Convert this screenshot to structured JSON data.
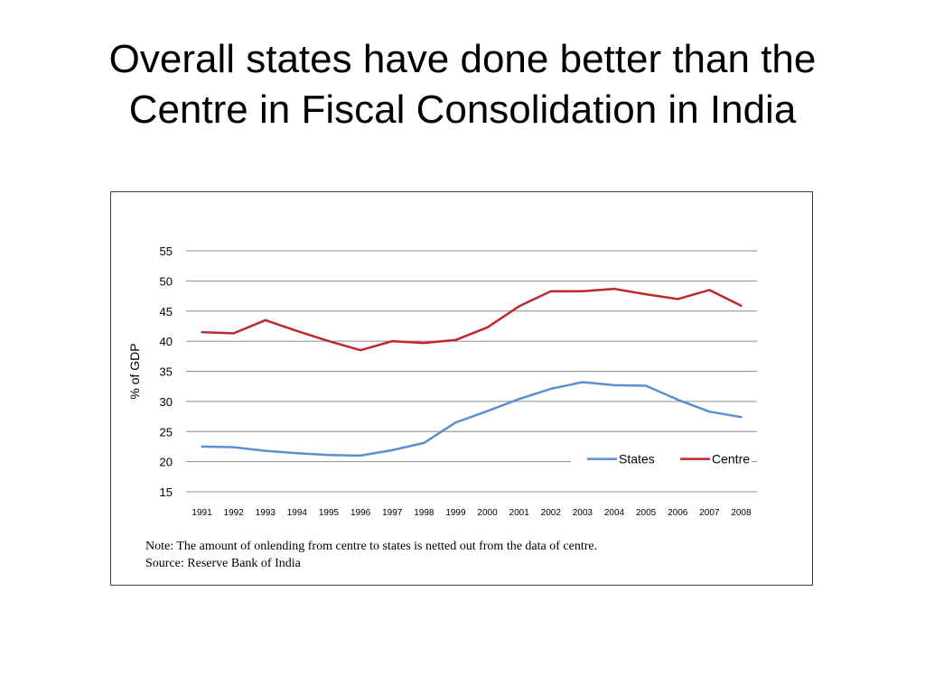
{
  "slide": {
    "title_line1": "Overall states have done better than the",
    "title_line2": "Centre in Fiscal Consolidation in India"
  },
  "chart_data": {
    "type": "line",
    "title": "",
    "xlabel": "",
    "ylabel": "% of GDP",
    "ylim": [
      15,
      55
    ],
    "yticks": [
      15,
      20,
      25,
      30,
      35,
      40,
      45,
      50,
      55
    ],
    "grid": true,
    "legend_position": "bottom-right",
    "categories": [
      "1991",
      "1992",
      "1993",
      "1994",
      "1995",
      "1996",
      "1997",
      "1998",
      "1999",
      "2000",
      "2001",
      "2002",
      "2003",
      "2004",
      "2005",
      "2006",
      "2007",
      "2008"
    ],
    "series": [
      {
        "name": "States",
        "color": "#5b8fd0",
        "values": [
          22.5,
          22.4,
          21.8,
          21.4,
          21.1,
          21.0,
          21.9,
          23.1,
          26.5,
          28.4,
          30.4,
          32.1,
          33.2,
          32.7,
          32.6,
          30.3,
          28.3,
          27.4
        ]
      },
      {
        "name": "Centre",
        "color": "#c0282b",
        "values": [
          41.5,
          41.3,
          43.5,
          41.7,
          40.0,
          38.5,
          40.0,
          39.7,
          40.2,
          42.3,
          45.8,
          48.3,
          48.3,
          48.7,
          47.8,
          47.0,
          48.5,
          45.9
        ]
      }
    ],
    "note": "Note: The amount of onlending from centre to states is netted out from  the data of centre.",
    "source": "Source: Reserve Bank of India"
  }
}
